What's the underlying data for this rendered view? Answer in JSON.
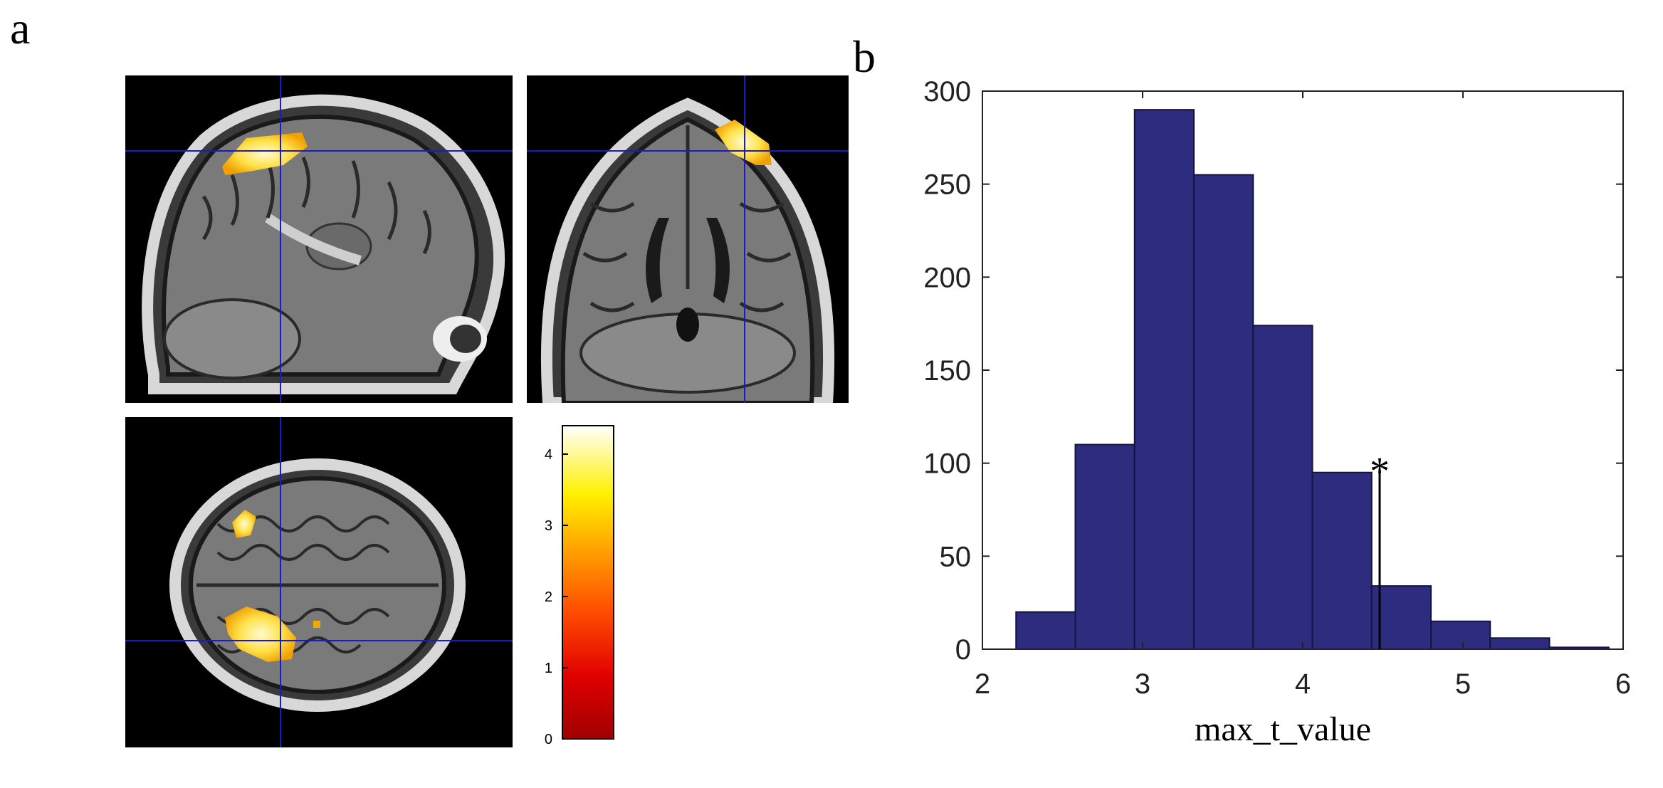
{
  "panels": {
    "a": "a",
    "b": "b"
  },
  "colors": {
    "bar_fill": "#2e2c7e",
    "bar_edge": "#15143f",
    "crosshair": "#1a1acc",
    "activation_core": "#fff7a0",
    "activation_edge": "#f2a900"
  },
  "colorbar": {
    "ticks": [
      "0",
      "1",
      "2",
      "3",
      "4"
    ],
    "range": [
      0,
      4.4
    ],
    "colormap": "hot"
  },
  "chart_data": {
    "type": "bar",
    "title": "",
    "xlabel": "max_t_value",
    "ylabel": "",
    "xlim": [
      2,
      6
    ],
    "ylim": [
      0,
      300
    ],
    "xticks": [
      "2",
      "3",
      "4",
      "5",
      "6"
    ],
    "yticks": [
      "0",
      "50",
      "100",
      "150",
      "200",
      "250",
      "300"
    ],
    "bin_edges": [
      2.21,
      2.58,
      2.95,
      3.32,
      3.69,
      4.06,
      4.43,
      4.8,
      5.17,
      5.54,
      5.91
    ],
    "values": [
      20,
      110,
      290,
      255,
      174,
      95,
      34,
      15,
      6,
      1
    ],
    "annotations": [
      {
        "text": "*",
        "x": 4.48,
        "y": 97
      }
    ],
    "marker_line_x": 4.48,
    "grid": false,
    "legend": "none"
  }
}
